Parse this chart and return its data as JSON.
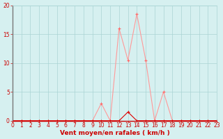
{
  "x": [
    0,
    1,
    2,
    3,
    4,
    5,
    6,
    7,
    8,
    9,
    10,
    11,
    12,
    13,
    14,
    15,
    16,
    17,
    18,
    19,
    20,
    21,
    22,
    23
  ],
  "y_moyen": [
    0,
    0,
    0,
    0,
    0,
    0,
    0,
    0,
    0,
    0,
    3,
    0,
    16,
    10.5,
    18.5,
    10.5,
    0,
    5,
    0,
    0,
    0,
    0,
    0,
    0
  ],
  "y_rafales": [
    0,
    0,
    0,
    0,
    0,
    0,
    0,
    0,
    0,
    0,
    0,
    0,
    0,
    1.5,
    0,
    0,
    0,
    0,
    0,
    0,
    0,
    0,
    0,
    0
  ],
  "line_light_color": "#ff9999",
  "line_dark_color": "#dd0000",
  "marker_light_color": "#ff6666",
  "marker_dark_color": "#dd0000",
  "bg_color": "#d6f0f0",
  "grid_color": "#aad4d4",
  "xlabel": "Vent moyen/en rafales ( km/h )",
  "xlabel_color": "#cc0000",
  "tick_color": "#cc0000",
  "axis_color": "#cc0000",
  "left_spine_color": "#777777",
  "ylim": [
    0,
    20
  ],
  "xlim": [
    0,
    23
  ],
  "yticks": [
    0,
    5,
    10,
    15,
    20
  ],
  "xticks": [
    0,
    1,
    2,
    3,
    4,
    5,
    6,
    7,
    8,
    9,
    10,
    11,
    12,
    13,
    14,
    15,
    16,
    17,
    18,
    19,
    20,
    21,
    22,
    23
  ]
}
